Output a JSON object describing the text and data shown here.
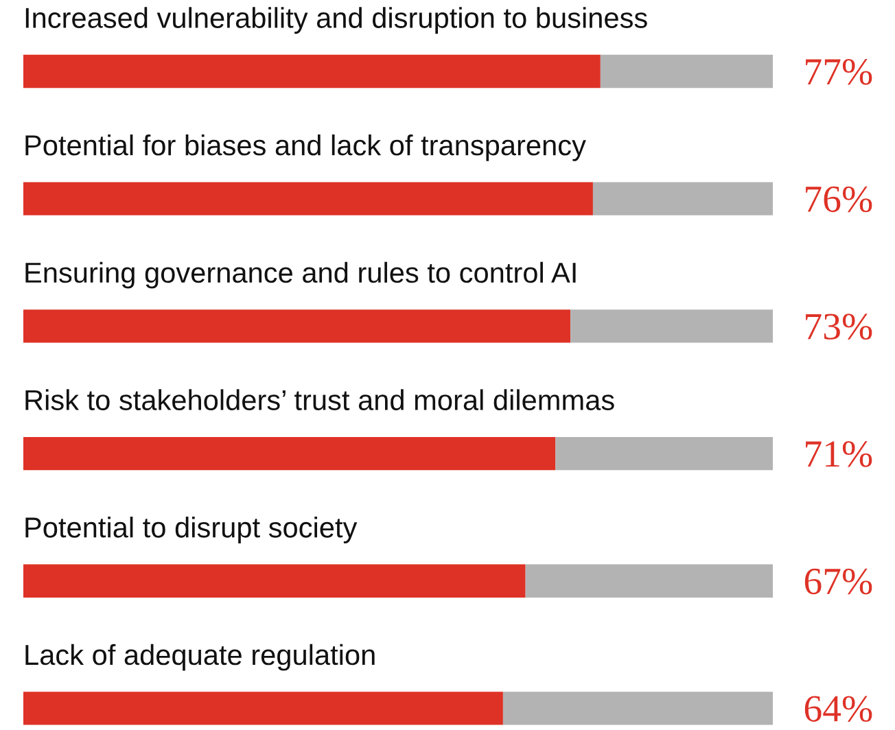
{
  "chart_data": {
    "type": "bar",
    "orientation": "horizontal",
    "stacked": true,
    "categories": [
      "Increased vulnerability and disruption to business",
      "Potential for biases and lack of transparency",
      "Ensuring governance and rules to control AI",
      "Risk to stakeholders’ trust and moral dilemmas",
      "Potential to disrupt society",
      "Lack of adequate regulation"
    ],
    "series": [
      {
        "color": "#de3226",
        "values": [
          77,
          76,
          73,
          71,
          67,
          64
        ],
        "value_labels": [
          "77%",
          "76%",
          "73%",
          "71%",
          "67%",
          "64%"
        ]
      },
      {
        "color": "#b3b3b3",
        "values": [
          23,
          24,
          27,
          29,
          33,
          36
        ]
      }
    ],
    "xlim": [
      0,
      100
    ],
    "tick_labels": false,
    "legend": false
  }
}
